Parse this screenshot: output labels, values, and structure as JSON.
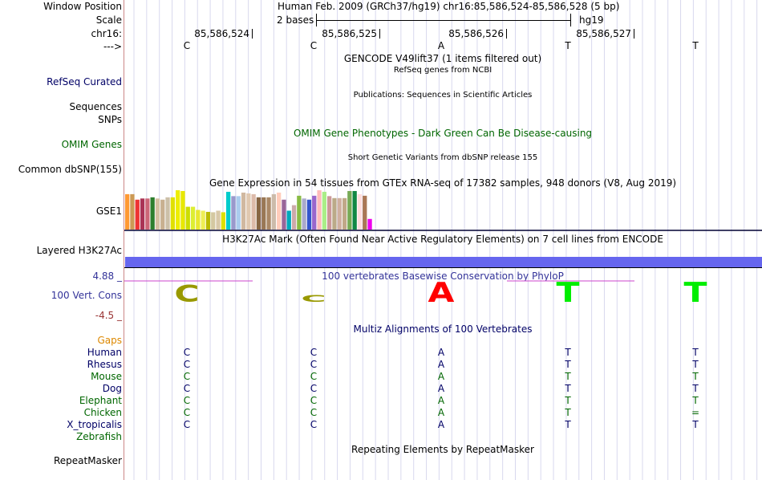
{
  "header": {
    "window_position_label": "Window Position",
    "window_position_value": "Human Feb. 2009 (GRCh37/hg19)   chr16:85,586,524-85,586,528 (5 bp)",
    "scale_label": "Scale",
    "scale_bases": "2 bases",
    "scale_db": "hg19",
    "chrom_label": "chr16:",
    "positions": [
      "85,586,524",
      "85,586,525",
      "85,586,526",
      "85,586,527"
    ],
    "strand_label": "--->",
    "bases": [
      "C",
      "C",
      "A",
      "T",
      "T"
    ]
  },
  "tracks": {
    "gencode_title": "GENCODE V49lift37 (1 items filtered out)",
    "refseq_desc": "RefSeq genes from NCBI",
    "refseq_label": "RefSeq Curated",
    "pubs_desc": "Publications: Sequences in Scientific Articles",
    "sequences_label": "Sequences",
    "snps_label": "SNPs",
    "omim_desc": "OMIM Gene Phenotypes - Dark Green Can Be Disease-causing",
    "omim_label": "OMIM Genes",
    "dbsnp_desc": "Short Genetic Variants from dbSNP release 155",
    "dbsnp_label": "Common dbSNP(155)",
    "gtex_desc": "Gene Expression in 54 tissues from GTEx RNA-seq of 17382 samples, 948 donors (V8, Aug 2019)",
    "gse1_label": "GSE1",
    "h3k27ac_desc": "H3K27Ac Mark (Often Found Near Active Regulatory Elements) on 7 cell lines from ENCODE",
    "h3k27ac_label": "Layered H3K27Ac",
    "phylop_desc": "100 vertebrates Basewise Conservation by PhyloP",
    "phylop_label": "100 Vert. Cons",
    "phylop_max": "4.88 _",
    "phylop_min": "-4.5 _",
    "multiz_desc": "Multiz Alignments of 100 Vertebrates",
    "gaps_label": "Gaps",
    "repeat_desc": "Repeating Elements by RepeatMasker",
    "repeat_label": "RepeatMasker"
  },
  "gtex_bars": {
    "colors": [
      "#ff9933",
      "#cc9955",
      "#ee3333",
      "#aa3355",
      "#cc6677",
      "#2d7f2d",
      "#d4c0a0",
      "#c8b090",
      "#ccc0a8",
      "#e0e000",
      "#eeee00",
      "#e8e800",
      "#ccdd00",
      "#ddee33",
      "#e8e830",
      "#eeee55",
      "#bbbb00",
      "#d4c8a0",
      "#d8c8a8",
      "#dde000",
      "#00cccc",
      "#9999cc",
      "#aaccee",
      "#d0b8a0",
      "#e0c8b0",
      "#ddbbaa",
      "#886644",
      "#997755",
      "#aa8866",
      "#ccbbaa",
      "#ffccbb",
      "#996699",
      "#00aabb",
      "#ccaaaa",
      "#88bb44",
      "#aaaacc",
      "#3355cc",
      "#9966cc",
      "#ffbbbb",
      "#aaee88",
      "#cc9999",
      "#bbaa88",
      "#d0b0a0",
      "#c0a888",
      "#77aa55",
      "#118844",
      "#ffdddd",
      "#aa7755",
      "#ee00ee"
    ],
    "values": [
      0.9,
      0.9,
      0.76,
      0.79,
      0.79,
      0.82,
      0.79,
      0.76,
      0.82,
      0.82,
      1.0,
      0.98,
      0.58,
      0.58,
      0.5,
      0.48,
      0.45,
      0.44,
      0.48,
      0.44,
      0.96,
      0.85,
      0.85,
      0.94,
      0.92,
      0.9,
      0.82,
      0.82,
      0.82,
      0.9,
      0.94,
      0.76,
      0.48,
      0.62,
      0.86,
      0.79,
      0.76,
      0.86,
      1.0,
      0.96,
      0.85,
      0.8,
      0.8,
      0.8,
      0.98,
      0.98,
      0.9,
      0.86,
      0.27
    ]
  },
  "species": [
    {
      "name": "Human",
      "color": "#000066",
      "bases": [
        "C",
        "C",
        "A",
        "T",
        "T"
      ]
    },
    {
      "name": "Rhesus",
      "color": "#000066",
      "bases": [
        "C",
        "C",
        "A",
        "T",
        "T"
      ]
    },
    {
      "name": "Mouse",
      "color": "#006600",
      "bases": [
        "C",
        "C",
        "A",
        "T",
        "T"
      ]
    },
    {
      "name": "Dog",
      "color": "#000066",
      "bases": [
        "C",
        "C",
        "A",
        "T",
        "T"
      ]
    },
    {
      "name": "Elephant",
      "color": "#006600",
      "bases": [
        "C",
        "C",
        "A",
        "T",
        "T"
      ]
    },
    {
      "name": "Chicken",
      "color": "#006600",
      "bases": [
        "C",
        "C",
        "A",
        "T",
        "="
      ]
    },
    {
      "name": "X_tropicalis",
      "color": "#000066",
      "bases": [
        "C",
        "C",
        "A",
        "T",
        "T"
      ]
    },
    {
      "name": "Zebrafish",
      "color": "#006600",
      "bases": [
        "",
        "",
        "",
        "",
        ""
      ]
    }
  ],
  "conservation_letters": [
    {
      "base": "C",
      "color": "#999900",
      "score": 2.5
    },
    {
      "base": "C",
      "color": "#999900",
      "score": 1.0
    },
    {
      "base": "A",
      "color": "#ff0000",
      "score": 3.0
    },
    {
      "base": "T",
      "color": "#00ee00",
      "score": 3.0
    },
    {
      "base": "T",
      "color": "#00ee00",
      "score": 3.0
    }
  ],
  "colors": {
    "label_blue": "#000066",
    "label_green": "#006600",
    "gaps_orange": "#dd8800",
    "phylop_blue": "#333399",
    "phylop_min_red": "#993333",
    "h3k27ac_blue": "#6666ee"
  }
}
